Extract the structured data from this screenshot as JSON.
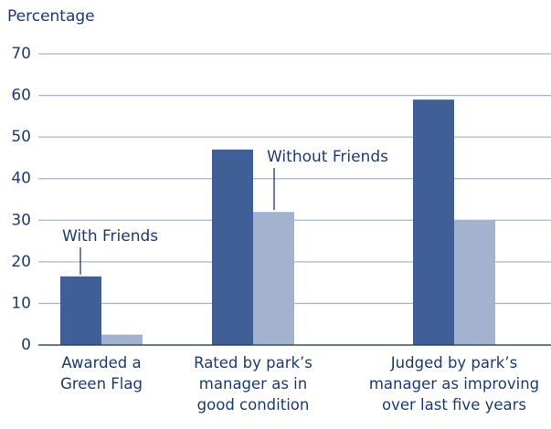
{
  "chart_data": {
    "type": "bar",
    "y_label": "Percentage",
    "categories": [
      "Awarded a\nGreen Flag",
      "Rated by park’s\nmanager as in\ngood condition",
      "Judged by park’s\nmanager as improving\nover last five years"
    ],
    "series": [
      {
        "name": "With Friends",
        "color": "#3f5f96",
        "values": [
          16.5,
          47,
          59
        ]
      },
      {
        "name": "Without Friends",
        "color": "#a3b3cf",
        "values": [
          2.5,
          32,
          30
        ]
      }
    ],
    "ylim": [
      0,
      70
    ],
    "yticks": [
      0,
      10,
      20,
      30,
      40,
      50,
      60,
      70
    ],
    "grid": true
  }
}
